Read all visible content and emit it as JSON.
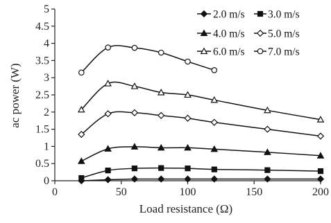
{
  "chart_data": {
    "type": "line",
    "xlabel": "Load resistance (Ω)",
    "ylabel": "ac power (W)",
    "xlim": [
      0,
      200
    ],
    "ylim": [
      0,
      5
    ],
    "xticks": [
      0,
      50,
      100,
      150,
      200
    ],
    "yticks": [
      0,
      0.5,
      1,
      1.5,
      2,
      2.5,
      3,
      3.5,
      4,
      4.5,
      5
    ],
    "grid": false,
    "legend_position": "top-right",
    "series": [
      {
        "name": "2.0 m/s",
        "marker": "diamond-filled",
        "x": [
          20,
          40,
          60,
          80,
          100,
          120,
          160,
          200
        ],
        "y": [
          0.0,
          0.03,
          0.05,
          0.05,
          0.05,
          0.05,
          0.05,
          0.05
        ]
      },
      {
        "name": "3.0 m/s",
        "marker": "square-filled",
        "x": [
          20,
          40,
          60,
          80,
          100,
          120,
          160,
          200
        ],
        "y": [
          0.08,
          0.3,
          0.36,
          0.37,
          0.36,
          0.33,
          0.31,
          0.28
        ]
      },
      {
        "name": "4.0 m/s",
        "marker": "triangle-filled",
        "x": [
          20,
          40,
          60,
          80,
          100,
          120,
          160,
          200
        ],
        "y": [
          0.57,
          0.93,
          0.99,
          0.96,
          0.96,
          0.92,
          0.83,
          0.73
        ]
      },
      {
        "name": "5.0 m/s",
        "marker": "diamond-open",
        "x": [
          20,
          40,
          60,
          80,
          100,
          120,
          160,
          200
        ],
        "y": [
          1.35,
          1.95,
          1.98,
          1.9,
          1.82,
          1.7,
          1.5,
          1.3
        ]
      },
      {
        "name": "6.0 m/s",
        "marker": "triangle-open",
        "x": [
          20,
          40,
          60,
          80,
          100,
          120,
          160,
          200
        ],
        "y": [
          2.07,
          2.83,
          2.75,
          2.57,
          2.5,
          2.35,
          2.05,
          1.78
        ]
      },
      {
        "name": "7.0 m/s",
        "marker": "circle-open",
        "x": [
          20,
          40,
          60,
          80,
          100,
          120
        ],
        "y": [
          3.15,
          3.88,
          3.87,
          3.73,
          3.47,
          3.22
        ]
      }
    ]
  }
}
